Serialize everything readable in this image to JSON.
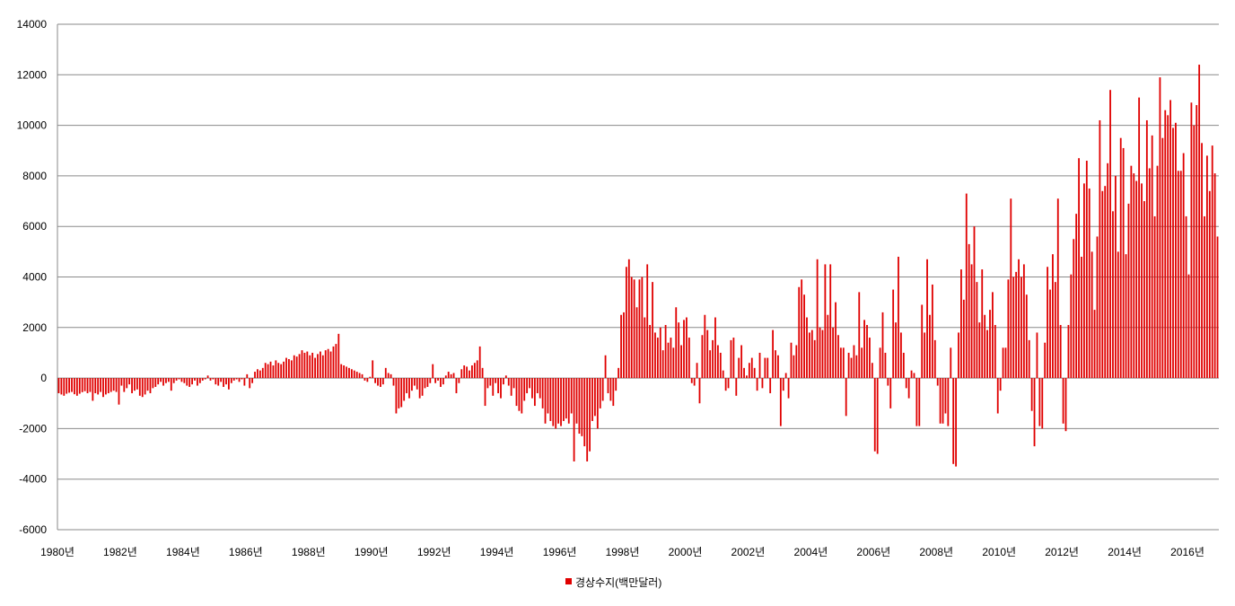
{
  "chart_data": {
    "type": "bar",
    "title": "",
    "xlabel": "",
    "ylabel": "",
    "ylim": [
      -6000,
      14000
    ],
    "yticks": [
      "14000",
      "12000",
      "10000",
      "8000",
      "6000",
      "4000",
      "2000",
      "0",
      "-2000",
      "-4000",
      "-6000"
    ],
    "year_labels": [
      "1980년",
      "1982년",
      "1984년",
      "1986년",
      "1988년",
      "1990년",
      "1992년",
      "1994년",
      "1996년",
      "1998년",
      "2000년",
      "2002년",
      "2004년",
      "2006년",
      "2008년",
      "2010년",
      "2012년",
      "2014년",
      "2016년"
    ],
    "grid": true,
    "legend": "bottom-center",
    "color": "#e00000",
    "series": [
      {
        "name": "경상수지(백만달러)",
        "years": [
          1980,
          1981,
          1982,
          1983,
          1984,
          1985,
          1986,
          1987,
          1988,
          1989,
          1990,
          1991,
          1992,
          1993,
          1994,
          1995,
          1996,
          1997,
          1998,
          1999,
          2000,
          2001,
          2002,
          2003,
          2004,
          2005,
          2006,
          2007,
          2008,
          2009,
          2010,
          2011,
          2012,
          2013,
          2014,
          2015,
          2016
        ],
        "monthly_values": [
          [
            -600,
            -650,
            -700,
            -620,
            -580,
            -550,
            -640,
            -700,
            -620,
            -560,
            -520,
            -600
          ],
          [
            -550,
            -900,
            -600,
            -650,
            -550,
            -750,
            -650,
            -600,
            -550,
            -500,
            -550,
            -1050
          ],
          [
            -300,
            -550,
            -400,
            -250,
            -600,
            -500,
            -450,
            -700,
            -750,
            -650,
            -500,
            -600
          ],
          [
            -400,
            -350,
            -250,
            -150,
            -300,
            -200,
            -150,
            -500,
            -200,
            -100,
            -50,
            -150
          ],
          [
            -200,
            -300,
            -350,
            -250,
            -100,
            -300,
            -200,
            -100,
            -50,
            100,
            -100,
            -50
          ],
          [
            -250,
            -300,
            -150,
            -350,
            -250,
            -450,
            -200,
            -100,
            -50,
            -150,
            -50,
            -300
          ],
          [
            150,
            -400,
            -200,
            250,
            350,
            300,
            400,
            600,
            550,
            650,
            500,
            700
          ],
          [
            600,
            550,
            650,
            800,
            750,
            700,
            900,
            850,
            950,
            1100,
            1000,
            1050
          ],
          [
            900,
            1000,
            800,
            950,
            1050,
            900,
            1100,
            1150,
            1050,
            1250,
            1350,
            1750
          ],
          [
            550,
            500,
            450,
            400,
            350,
            300,
            250,
            200,
            150,
            -100,
            -150,
            50
          ],
          [
            700,
            -200,
            -300,
            -350,
            -250,
            400,
            200,
            150,
            -300,
            -1400,
            -1200,
            -1150
          ],
          [
            -900,
            -600,
            -800,
            -500,
            -300,
            -450,
            -800,
            -700,
            -400,
            -350,
            -200,
            550
          ],
          [
            -200,
            -100,
            -350,
            -250,
            100,
            250,
            150,
            200,
            -600,
            -200,
            350,
            500
          ],
          [
            450,
            300,
            500,
            600,
            700,
            1250,
            400,
            -1100,
            -400,
            -300,
            -700,
            -200
          ],
          [
            -600,
            -800,
            -250,
            100,
            -300,
            -700,
            -400,
            -1100,
            -1300,
            -1400,
            -900,
            -600
          ],
          [
            -400,
            -800,
            -1100,
            -600,
            -800,
            -1200,
            -1800,
            -1400,
            -1700,
            -1900,
            -2000,
            -1800
          ],
          [
            -1900,
            -1700,
            -1600,
            -1800,
            -1400,
            -3300,
            -1800,
            -2200,
            -2300,
            -2700,
            -3300,
            -2900
          ],
          [
            -1700,
            -1500,
            -2000,
            -1200,
            -900,
            900,
            -600,
            -900,
            -1100,
            -500,
            400,
            2500
          ],
          [
            2600,
            4400,
            4700,
            4000,
            3900,
            2800,
            3900,
            4000,
            2400,
            4500,
            2100,
            3800
          ],
          [
            1800,
            1600,
            2000,
            1100,
            2100,
            1400,
            1600,
            1200,
            2800,
            2200,
            1300,
            2300
          ],
          [
            2400,
            1600,
            -200,
            -300,
            600,
            -1000,
            1700,
            2500,
            1900,
            1100,
            1500,
            2400
          ],
          [
            1300,
            1000,
            300,
            -500,
            -400,
            1500,
            1600,
            -700,
            800,
            1300,
            400,
            100
          ],
          [
            600,
            800,
            400,
            -500,
            1000,
            -400,
            800,
            800,
            -600,
            1900,
            1100,
            900
          ],
          [
            -1900,
            -500,
            200,
            -800,
            1400,
            900,
            1300,
            3600,
            3900,
            3300,
            2400,
            1800
          ],
          [
            1900,
            1500,
            4700,
            2000,
            1900,
            4500,
            2500,
            4500,
            2000,
            3000,
            1700,
            1200
          ],
          [
            1200,
            -1500,
            1000,
            800,
            1300,
            900,
            3400,
            1200,
            2300,
            2100,
            1600,
            600
          ],
          [
            -2900,
            -3000,
            1200,
            2600,
            1000,
            -300,
            -1200,
            3500,
            2200,
            4800,
            1800,
            1000
          ],
          [
            -400,
            -800,
            300,
            200,
            -1900,
            -1900,
            2900,
            1800,
            4700,
            2500,
            3700,
            1500
          ],
          [
            -300,
            -1800,
            -1800,
            -1400,
            -1900,
            1200,
            -3400,
            -3500,
            1800,
            4300,
            3100,
            7300
          ],
          [
            5300,
            4500,
            6000,
            3800,
            2200,
            4300,
            2500,
            1900,
            2700,
            3400,
            2100,
            -1400
          ],
          [
            -500,
            1200,
            1200,
            3900,
            7100,
            4000,
            4200,
            4700,
            4000,
            4500,
            3300,
            1500
          ],
          [
            -1300,
            -2700,
            1800,
            -1900,
            -2000,
            1400,
            4400,
            3500,
            4900,
            3800,
            7100,
            2100
          ],
          [
            -1800,
            -2100,
            2100,
            4100,
            5500,
            6500,
            8700,
            4800,
            7700,
            8600,
            7500,
            5000
          ],
          [
            2700,
            5600,
            10200,
            7400,
            7600,
            8500,
            11400,
            6600,
            8000,
            5000,
            9500,
            9100
          ],
          [
            4900,
            6900,
            8400,
            8100,
            7800,
            11100,
            7700,
            7000,
            10200,
            8300,
            9600,
            6400
          ],
          [
            8400,
            11900,
            9500,
            10600,
            10400,
            11000,
            9900,
            10100,
            8200,
            8200,
            8900,
            6400
          ],
          [
            4100,
            10900,
            10000,
            10800,
            12400,
            9300,
            6400,
            8800,
            7400,
            9200,
            8100,
            5600
          ]
        ]
      }
    ]
  }
}
